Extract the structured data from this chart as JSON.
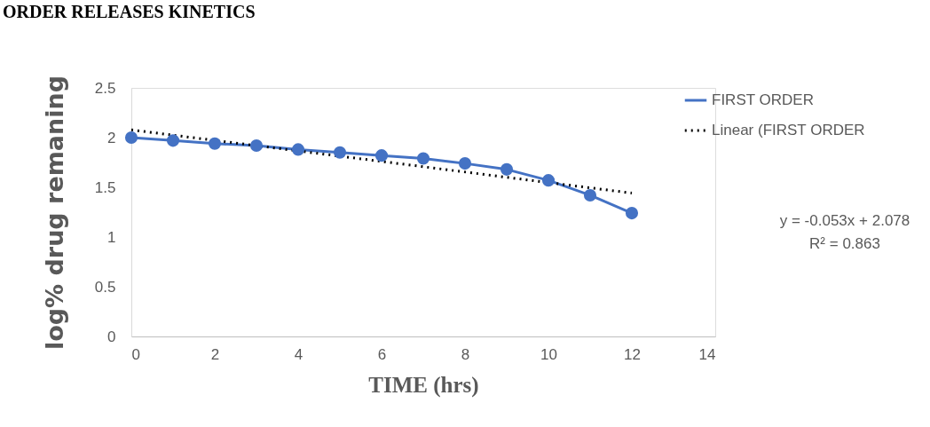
{
  "chart_data": {
    "type": "line",
    "title": "ORDER RELEASES KINETICS",
    "xlabel": "TIME (hrs)",
    "ylabel": "log% drug remaning",
    "x": [
      0,
      1,
      2,
      3,
      4,
      5,
      6,
      7,
      8,
      9,
      10,
      11,
      12
    ],
    "series": [
      {
        "name": "FIRST ORDER",
        "color": "#4472c4",
        "marker": "circle",
        "line_style": "solid",
        "values": [
          2.0,
          1.97,
          1.94,
          1.92,
          1.88,
          1.85,
          1.82,
          1.79,
          1.74,
          1.68,
          1.57,
          1.42,
          1.24
        ]
      },
      {
        "name": "Linear (FIRST ORDER",
        "color": "#000000",
        "marker": "none",
        "line_style": "dotted",
        "x": [
          0,
          12
        ],
        "values": [
          2.078,
          1.442
        ]
      }
    ],
    "xlim": [
      0,
      14
    ],
    "xticks": [
      0,
      2,
      4,
      6,
      8,
      10,
      12,
      14
    ],
    "ylim": [
      0,
      2.5
    ],
    "yticks": [
      0,
      0.5,
      1,
      1.5,
      2,
      2.5
    ],
    "grid": false,
    "legend": "right",
    "annotations": [
      "y = -0.053x + 2.078",
      "R² = 0.863"
    ]
  }
}
